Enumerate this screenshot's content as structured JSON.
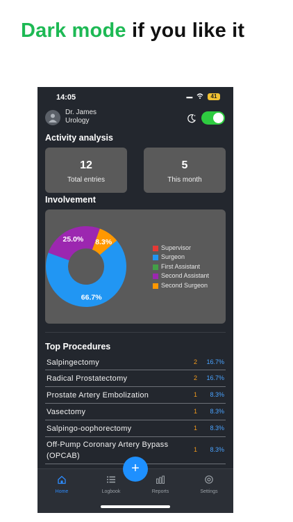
{
  "headline": {
    "accent": "Dark mode",
    "rest": "if you like it"
  },
  "status_bar": {
    "time": "14:05",
    "battery": "41"
  },
  "profile": {
    "name": "Dr. James",
    "specialty": "Urology"
  },
  "dark_mode_toggle": {
    "on": true
  },
  "activity": {
    "title": "Activity analysis",
    "total_entries": {
      "value": "12",
      "label": "Total entries"
    },
    "this_month": {
      "value": "5",
      "label": "This month"
    }
  },
  "involvement": {
    "title": "Involvement",
    "legend": [
      {
        "label": "Supervisor",
        "color": "#e53935"
      },
      {
        "label": "Surgeon",
        "color": "#2196f3"
      },
      {
        "label": "First Assistant",
        "color": "#43a047"
      },
      {
        "label": "Second Assistant",
        "color": "#9c27b0"
      },
      {
        "label": "Second Surgeon",
        "color": "#ff9800"
      }
    ]
  },
  "chart_data": {
    "type": "pie",
    "categories": [
      "Supervisor",
      "Surgeon",
      "First Assistant",
      "Second Assistant",
      "Second Surgeon"
    ],
    "values": [
      0,
      66.7,
      0,
      25.0,
      8.3
    ],
    "labels": [
      "",
      "66.7%",
      "",
      "25.0%",
      "8.3%"
    ],
    "colors": [
      "#e53935",
      "#2196f3",
      "#43a047",
      "#9c27b0",
      "#ff9800"
    ],
    "donut": true,
    "legend_position": "right"
  },
  "top_procedures": {
    "title": "Top Procedures",
    "rows": [
      {
        "name": "Salpingectomy",
        "count": "2",
        "pct": "16.7%"
      },
      {
        "name": "Radical Prostatectomy",
        "count": "2",
        "pct": "16.7%"
      },
      {
        "name": "Prostate Artery Embolization",
        "count": "1",
        "pct": "8.3%"
      },
      {
        "name": "Vasectomy",
        "count": "1",
        "pct": "8.3%"
      },
      {
        "name": "Salpingo-oophorectomy",
        "count": "1",
        "pct": "8.3%"
      },
      {
        "name": "Off-Pump Coronary Artery Bypass (OPCAB)",
        "count": "1",
        "pct": "8.3%"
      }
    ]
  },
  "fab": {
    "label": "+"
  },
  "tabs": [
    {
      "label": "Home",
      "icon": "home-icon",
      "active": true
    },
    {
      "label": "Logbook",
      "icon": "list-icon",
      "active": false
    },
    {
      "label": "Reports",
      "icon": "bar-chart-icon",
      "active": false
    },
    {
      "label": "Settings",
      "icon": "gear-icon",
      "active": false
    }
  ],
  "colors": {
    "accent_green": "#1db954",
    "background": "#23272e",
    "card": "#5a5a5a",
    "tab_active": "#2d8cff",
    "count_orange": "#f29b1d",
    "pct_blue": "#4aa3ff"
  }
}
